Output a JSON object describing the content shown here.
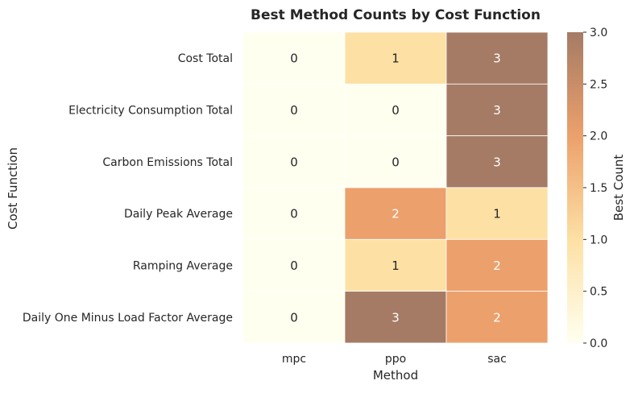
{
  "chart_data": {
    "type": "heatmap",
    "title": "Best Method Counts by Cost Function",
    "xlabel": "Method",
    "ylabel": "Cost Function",
    "x_categories": [
      "mpc",
      "ppo",
      "sac"
    ],
    "y_categories": [
      "Cost Total",
      "Electricity Consumption Total",
      "Carbon Emissions Total",
      "Daily Peak Average",
      "Ramping Average",
      "Daily One Minus Load Factor Average"
    ],
    "values": [
      [
        0,
        1,
        3
      ],
      [
        0,
        0,
        3
      ],
      [
        0,
        0,
        3
      ],
      [
        0,
        2,
        1
      ],
      [
        0,
        1,
        2
      ],
      [
        0,
        3,
        2
      ]
    ],
    "colorbar": {
      "label": "Best Count",
      "range": [
        0,
        3
      ],
      "ticks": [
        "0.0",
        "0.5",
        "1.0",
        "1.5",
        "2.0",
        "2.5",
        "3.0"
      ],
      "colors": [
        "#fffff0",
        "#fde0a4",
        "#eca06c",
        "#a57b65"
      ]
    },
    "grid": false
  }
}
